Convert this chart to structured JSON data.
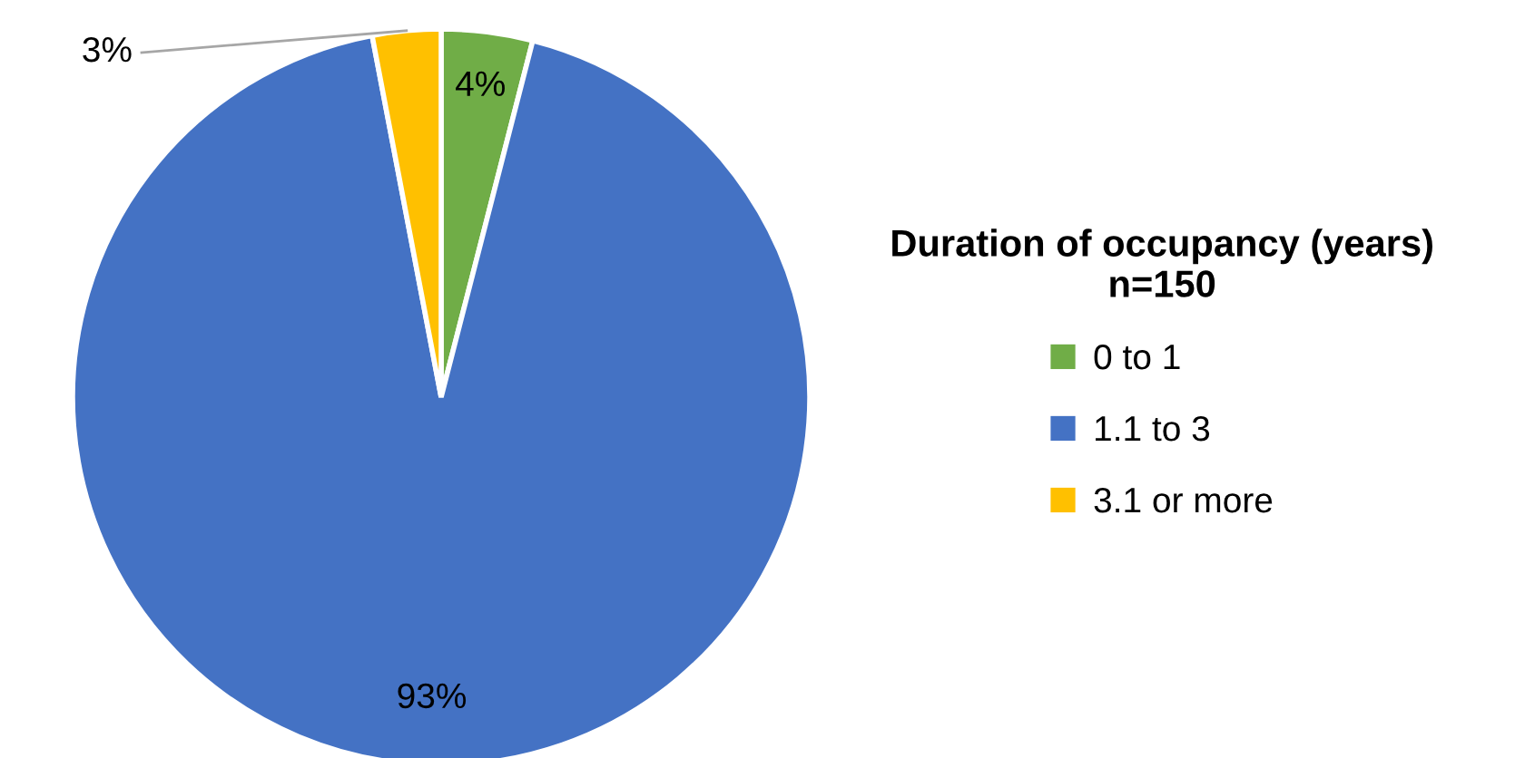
{
  "chart_data": {
    "type": "pie",
    "legend_title": "Duration of occupancy (years)\nn=150",
    "categories": [
      "0 to 1",
      "1.1 to 3",
      "3.1 or more"
    ],
    "values": [
      4,
      93,
      3
    ],
    "colors": [
      "#70ad47",
      "#4472c4",
      "#ffc000"
    ],
    "value_labels": [
      "4%",
      "93%",
      "3%"
    ],
    "legend": "right"
  }
}
